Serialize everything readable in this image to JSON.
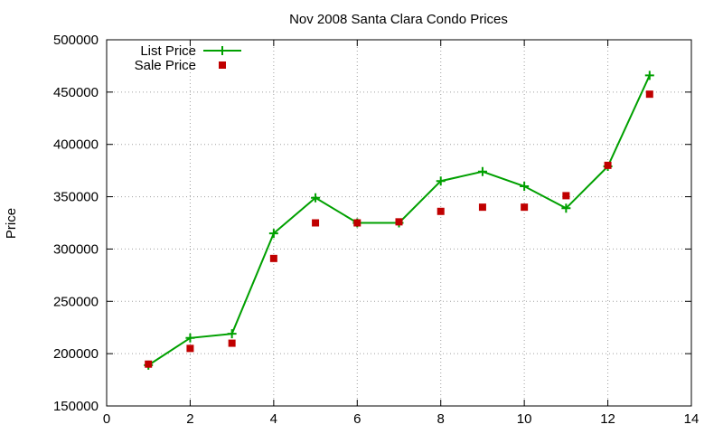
{
  "chart_data": {
    "type": "line",
    "title": "Nov 2008 Santa Clara Condo Prices",
    "xlabel": "",
    "ylabel": "Price",
    "xlim": [
      0,
      14
    ],
    "ylim": [
      150000,
      500000
    ],
    "xticks": [
      0,
      2,
      4,
      6,
      8,
      10,
      12,
      14
    ],
    "yticks": [
      150000,
      200000,
      250000,
      300000,
      350000,
      400000,
      450000,
      500000
    ],
    "grid": true,
    "legend_position": "top-left",
    "series": [
      {
        "name": "List Price",
        "style": "line+cross",
        "color": "#00a000",
        "x": [
          1,
          2,
          3,
          4,
          5,
          6,
          7,
          8,
          9,
          10,
          11,
          12,
          13
        ],
        "y": [
          189000,
          215000,
          219000,
          315000,
          349000,
          325000,
          325000,
          365000,
          374000,
          360000,
          339000,
          379000,
          466000
        ]
      },
      {
        "name": "Sale Price",
        "style": "square",
        "color": "#c00000",
        "x": [
          1,
          2,
          3,
          4,
          5,
          6,
          7,
          8,
          9,
          10,
          11,
          12,
          13
        ],
        "y": [
          190000,
          205000,
          210000,
          291000,
          325000,
          325000,
          326000,
          336000,
          340000,
          340000,
          351000,
          380000,
          448000
        ]
      }
    ]
  }
}
